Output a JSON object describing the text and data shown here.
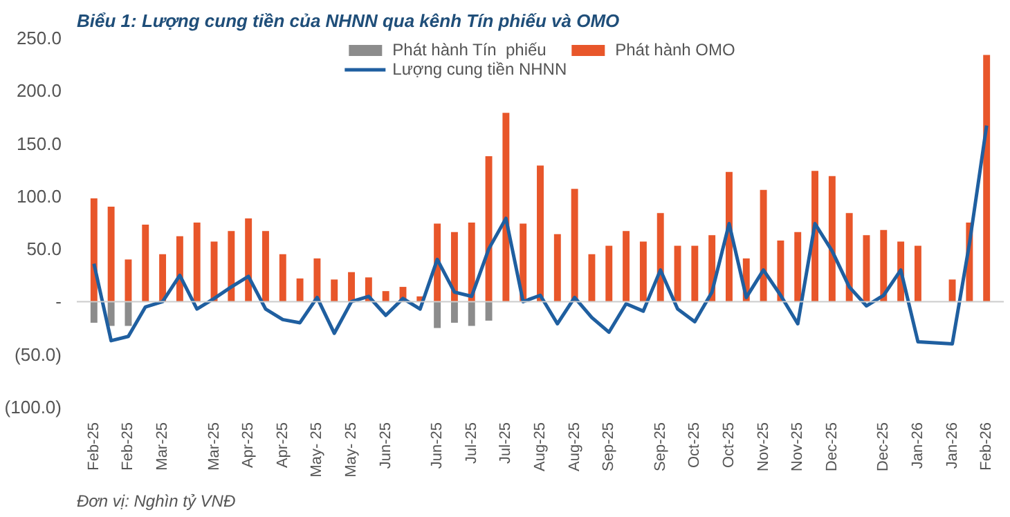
{
  "chart_data": {
    "type": "bar",
    "title": "Biểu 1: Lượng cung tiền của NHNN qua kênh Tín phiếu và OMO",
    "annotations": [
      "Đơn vị: Nghìn tỷ VNĐ"
    ],
    "categories": [
      "Feb-25",
      null,
      "Feb-25",
      null,
      "Mar-25",
      null,
      null,
      "Mar-25",
      null,
      "Apr-25",
      null,
      "Apr-25",
      null,
      "May- 25",
      null,
      "May- 25",
      null,
      "Jun-25",
      null,
      null,
      "Jun-25",
      null,
      "Jul-25",
      null,
      "Jul-25",
      null,
      "Aug-25",
      null,
      "Aug-25",
      null,
      "Sep-25",
      null,
      null,
      "Sep-25",
      null,
      "Oct-25",
      null,
      "Oct-25",
      null,
      "Nov-25",
      null,
      "Nov-25",
      null,
      "Dec-25",
      null,
      null,
      "Dec-25",
      null,
      "Jan-26",
      null,
      "Jan-26",
      null,
      "Feb-26"
    ],
    "series": [
      {
        "name": "Phát hành Tín  phiếu",
        "color": "#8c8c8c",
        "values": [
          -20,
          -23,
          -23,
          null,
          null,
          null,
          null,
          null,
          null,
          null,
          null,
          null,
          null,
          null,
          null,
          null,
          null,
          null,
          null,
          null,
          -25,
          -20,
          -23,
          -18,
          null,
          null,
          null,
          null,
          null,
          null,
          null,
          null,
          null,
          null,
          null,
          null,
          null,
          null,
          null,
          null,
          null,
          null,
          null,
          null,
          null,
          null,
          null,
          null,
          null,
          null,
          null,
          null,
          null
        ]
      },
      {
        "name": "Phát hành OMO",
        "color": "#e8562a",
        "values": [
          98,
          90,
          40,
          73,
          45,
          62,
          75,
          57,
          67,
          79,
          67,
          45,
          22,
          41,
          21,
          28,
          23,
          10,
          14,
          5,
          74,
          66,
          75,
          138,
          179,
          74,
          129,
          64,
          107,
          45,
          53,
          67,
          57,
          84,
          53,
          53,
          63,
          123,
          41,
          106,
          58,
          66,
          124,
          119,
          84,
          63,
          68,
          57,
          53,
          null,
          21,
          75,
          234
        ]
      },
      {
        "name": "Lượng cung tiền NHNN",
        "type": "line",
        "color": "#1f5fa0",
        "values": [
          36,
          -37,
          -33,
          -5,
          0,
          25,
          -7,
          3,
          14,
          24,
          -7,
          -17,
          -20,
          4,
          -30,
          0,
          5,
          -13,
          3,
          -7,
          40,
          9,
          5,
          50,
          79,
          0,
          6,
          -21,
          4,
          -15,
          -29,
          -2,
          -9,
          30,
          -7,
          -19,
          9,
          74,
          4,
          30,
          6,
          -21,
          74,
          48,
          14,
          -4,
          6,
          30,
          -38,
          -39,
          -40,
          55,
          167
        ]
      }
    ],
    "ylim": [
      -100,
      250
    ],
    "yticks": [
      {
        "value": 250,
        "label": "250.0"
      },
      {
        "value": 200,
        "label": "200.0"
      },
      {
        "value": 150,
        "label": "150.0"
      },
      {
        "value": 100,
        "label": "100.0"
      },
      {
        "value": 50,
        "label": "50.0"
      },
      {
        "value": 0,
        "label": "-"
      },
      {
        "value": -50,
        "label": "(50.0)"
      },
      {
        "value": -100,
        "label": "(100.0)"
      }
    ],
    "ref_lines": [
      {
        "axis": "y",
        "value": 0,
        "color": "#cccccc"
      }
    ],
    "legend": "top",
    "grid": false
  }
}
